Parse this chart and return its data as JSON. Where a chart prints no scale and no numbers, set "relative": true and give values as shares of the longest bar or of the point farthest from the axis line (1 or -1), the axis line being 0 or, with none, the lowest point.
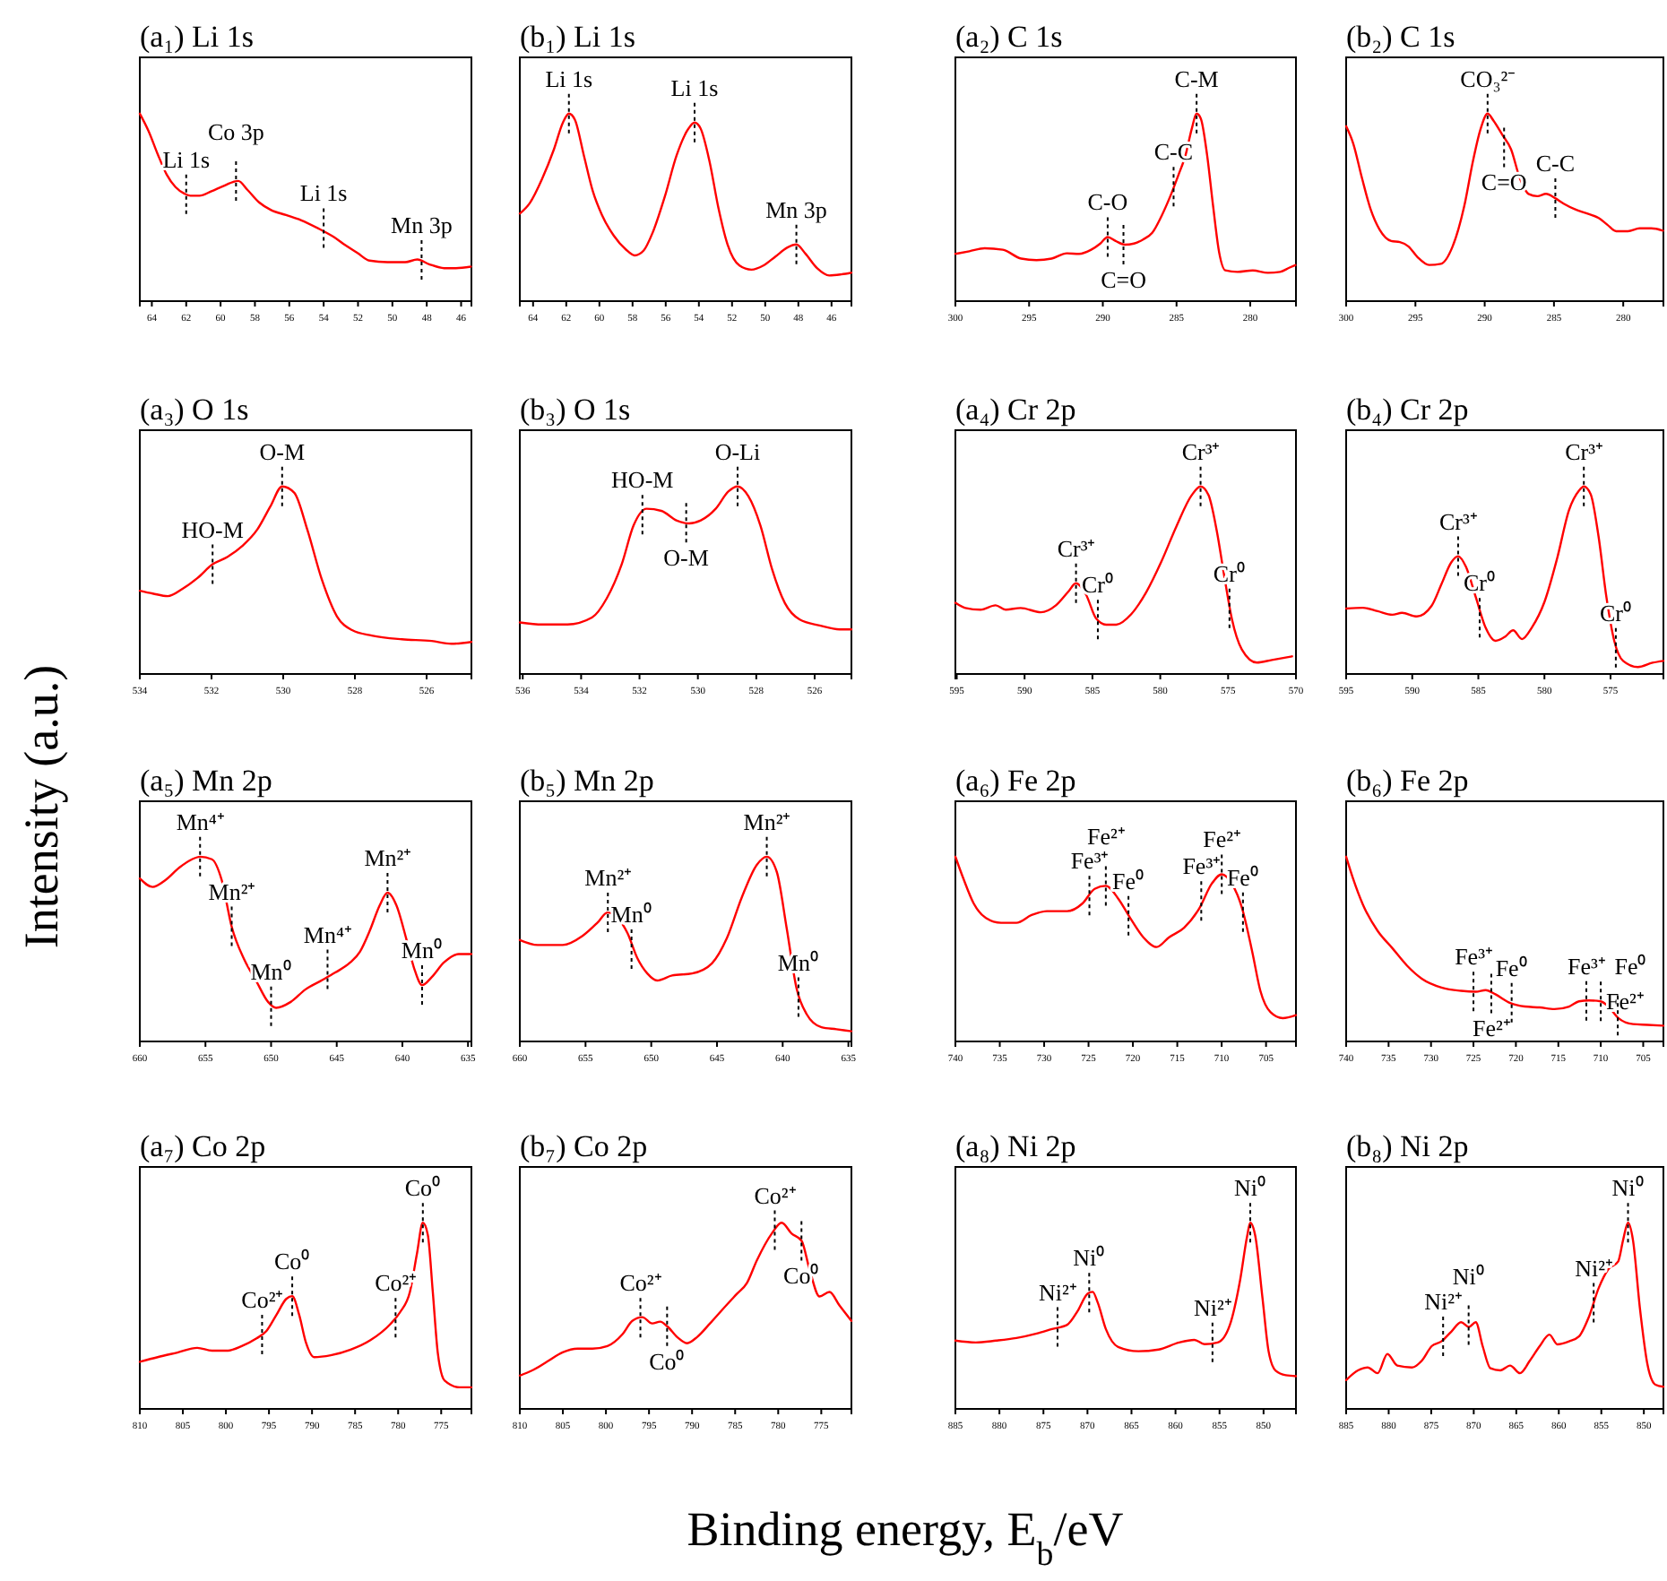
{
  "chart_data": [
    {
      "type": "line",
      "title": "(a₁) Li 1s",
      "relative": true,
      "tick_labels": "x",
      "color": "#ff0000",
      "xlim": [
        64.7,
        45.4
      ],
      "xticks": [
        64,
        62,
        60,
        58,
        56,
        54,
        52,
        50,
        48,
        46
      ],
      "x": [
        64.7,
        64.18,
        63.66,
        63.14,
        62.62,
        62.1,
        61.75,
        61.23,
        60.53,
        59.84,
        58.97,
        58.45,
        57.76,
        57.06,
        56.19,
        55.33,
        54.28,
        53.42,
        52.72,
        52.03,
        51.33,
        50.29,
        49.25,
        48.55,
        47.86,
        46.99,
        46.3,
        45.43
      ],
      "values": [
        1.0,
        0.905,
        0.784,
        0.676,
        0.608,
        0.573,
        0.562,
        0.562,
        0.586,
        0.614,
        0.641,
        0.595,
        0.527,
        0.486,
        0.459,
        0.432,
        0.386,
        0.343,
        0.297,
        0.257,
        0.216,
        0.208,
        0.208,
        0.222,
        0.197,
        0.176,
        0.176,
        0.184
      ],
      "annotations": [
        {
          "text": "Li 1s",
          "x": 62,
          "y": 0.57
        },
        {
          "text": "Co 3p",
          "x": 59.1,
          "y": 0.64
        },
        {
          "text": "Li 1s",
          "x": 54,
          "y": 0.39
        },
        {
          "text": "Mn 3p",
          "x": 48.3,
          "y": 0.22
        }
      ]
    },
    {
      "type": "line",
      "title": "(b₁) Li 1s",
      "relative": true,
      "tick_labels": "x",
      "color": "#ff0000",
      "xlim": [
        64.8,
        44.8
      ],
      "xticks": [
        64,
        62,
        60,
        58,
        56,
        54,
        52,
        50,
        48,
        46
      ],
      "x": [
        64.8,
        64.19,
        63.46,
        62.74,
        62.2,
        61.84,
        61.48,
        60.94,
        60.4,
        59.85,
        59.13,
        58.41,
        57.87,
        57.33,
        56.79,
        56.06,
        55.34,
        54.62,
        54.26,
        53.9,
        53.36,
        52.81,
        52.27,
        51.55,
        50.83,
        50.11,
        49.38,
        48.66,
        48.12,
        47.58,
        46.86,
        46.14,
        45.41,
        44.8
      ],
      "values": [
        0.467,
        0.524,
        0.651,
        0.81,
        0.952,
        1.0,
        0.968,
        0.778,
        0.587,
        0.46,
        0.349,
        0.276,
        0.244,
        0.27,
        0.365,
        0.556,
        0.778,
        0.921,
        0.952,
        0.921,
        0.746,
        0.492,
        0.302,
        0.19,
        0.168,
        0.19,
        0.238,
        0.286,
        0.302,
        0.254,
        0.175,
        0.137,
        0.143,
        0.152
      ],
      "annotations": [
        {
          "text": "Li 1s",
          "x": 61.84,
          "y": 1.0
        },
        {
          "text": "Li 1s",
          "x": 54.26,
          "y": 0.952
        },
        {
          "text": "Mn 3p",
          "x": 48.12,
          "y": 0.302
        }
      ]
    },
    {
      "type": "line",
      "title": "(a₂) C 1s",
      "relative": true,
      "tick_labels": "x",
      "color": "#ff0000",
      "xlim": [
        300,
        276.9
      ],
      "xticks": [
        300,
        295,
        290,
        285,
        280
      ],
      "x": [
        300,
        299.05,
        298.02,
        296.78,
        295.54,
        294.5,
        293.47,
        292.44,
        291.61,
        290.79,
        290.17,
        289.67,
        289.13,
        288.51,
        287.89,
        287.27,
        286.65,
        286.03,
        285.41,
        284.88,
        284.38,
        283.97,
        283.64,
        283.35,
        282.93,
        282.52,
        282.11,
        281.69,
        280.87,
        279.83,
        278.8,
        277.98,
        277.36,
        276.94
      ],
      "values": [
        0.252,
        0.266,
        0.282,
        0.274,
        0.227,
        0.219,
        0.227,
        0.255,
        0.252,
        0.274,
        0.307,
        0.342,
        0.321,
        0.301,
        0.307,
        0.329,
        0.364,
        0.452,
        0.562,
        0.671,
        0.781,
        0.918,
        1.0,
        0.973,
        0.781,
        0.507,
        0.26,
        0.164,
        0.156,
        0.164,
        0.151,
        0.156,
        0.178,
        0.192
      ],
      "annotations": [
        {
          "text": "C-O",
          "x": 289.67,
          "y": 0.342
        },
        {
          "text": "C=O",
          "x": 288.6,
          "y": 0.301
        },
        {
          "text": "C-C",
          "x": 285.2,
          "y": 0.61
        },
        {
          "text": "C-M",
          "x": 283.64,
          "y": 1.0
        }
      ]
    },
    {
      "type": "line",
      "title": "(b₂) C 1s",
      "relative": true,
      "tick_labels": "x",
      "color": "#ff0000",
      "xlim": [
        300,
        277.1
      ],
      "xticks": [
        300,
        295,
        290,
        285,
        280
      ],
      "x": [
        300,
        299.49,
        298.86,
        298.23,
        297.59,
        296.75,
        296.12,
        295.49,
        294.85,
        294.01,
        293.16,
        292.32,
        291.48,
        290.84,
        290.3,
        289.79,
        289.37,
        288.73,
        288.1,
        287.47,
        286.84,
        286.2,
        285.57,
        284.94,
        284.3,
        283.46,
        282.62,
        281.77,
        281.14,
        280.51,
        279.66,
        278.82,
        277.97,
        277.13
      ],
      "values": [
        0.933,
        0.841,
        0.657,
        0.489,
        0.382,
        0.321,
        0.315,
        0.291,
        0.235,
        0.193,
        0.199,
        0.291,
        0.505,
        0.749,
        0.917,
        1.0,
        0.963,
        0.887,
        0.81,
        0.657,
        0.572,
        0.56,
        0.572,
        0.55,
        0.52,
        0.489,
        0.468,
        0.443,
        0.407,
        0.373,
        0.373,
        0.388,
        0.388,
        0.376
      ],
      "annotations": [
        {
          "text": "CO₃²⁻",
          "x": 289.79,
          "y": 1.0
        },
        {
          "text": "C=O",
          "x": 288.6,
          "y": 0.82
        },
        {
          "text": "C-C",
          "x": 284.9,
          "y": 0.55
        }
      ]
    },
    {
      "type": "line",
      "title": "(a₃) O 1s",
      "relative": true,
      "tick_labels": "x",
      "color": "#ff0000",
      "xlim": [
        534,
        524.75
      ],
      "xticks": [
        534,
        532,
        530,
        528,
        526
      ],
      "x": [
        534,
        533.64,
        533.22,
        532.81,
        532.39,
        531.97,
        531.56,
        531.14,
        530.72,
        530.36,
        530.03,
        529.69,
        529.33,
        528.92,
        528.5,
        528.08,
        527.53,
        526.69,
        525.86,
        525.31,
        524.75
      ],
      "values": [
        0.444,
        0.429,
        0.415,
        0.454,
        0.512,
        0.585,
        0.624,
        0.683,
        0.771,
        0.893,
        1.0,
        0.966,
        0.771,
        0.502,
        0.307,
        0.234,
        0.205,
        0.185,
        0.176,
        0.161,
        0.171
      ],
      "annotations": [
        {
          "text": "HO-M",
          "x": 531.97,
          "y": 0.585
        },
        {
          "text": "O-M",
          "x": 530.03,
          "y": 1.0
        }
      ]
    },
    {
      "type": "line",
      "title": "(b₃) O 1s",
      "relative": true,
      "tick_labels": "x",
      "color": "#ff0000",
      "xlim": [
        536.1,
        524.74
      ],
      "xticks": [
        536,
        534,
        532,
        530,
        528,
        526
      ],
      "x": [
        536.1,
        535.32,
        534.47,
        533.63,
        533.12,
        532.61,
        532.2,
        531.76,
        531.25,
        530.74,
        530.3,
        529.9,
        529.39,
        528.95,
        528.64,
        528.27,
        527.86,
        527.46,
        527.02,
        526.51,
        525.83,
        525.15,
        524.74
      ],
      "values": [
        0.275,
        0.264,
        0.264,
        0.301,
        0.404,
        0.585,
        0.793,
        0.881,
        0.87,
        0.819,
        0.803,
        0.819,
        0.881,
        0.974,
        1.0,
        0.948,
        0.793,
        0.56,
        0.378,
        0.29,
        0.259,
        0.238,
        0.238
      ],
      "annotations": [
        {
          "text": "HO-M",
          "x": 531.9,
          "y": 0.85
        },
        {
          "text": "O-M",
          "x": 530.4,
          "y": 0.806
        },
        {
          "text": "O-Li",
          "x": 528.64,
          "y": 1.0
        }
      ]
    },
    {
      "type": "line",
      "title": "(a₄) Cr 2p",
      "relative": true,
      "tick_labels": "x",
      "color": "#ff0000",
      "xlim": [
        595.1,
        570
      ],
      "xticks": [
        595,
        590,
        585,
        580,
        575,
        570
      ],
      "x": [
        595.1,
        594.36,
        593.25,
        592.14,
        591.4,
        590.29,
        588.8,
        587.69,
        586.8,
        586.21,
        585.47,
        584.73,
        583.99,
        583.25,
        582.14,
        581.03,
        579.91,
        578.8,
        577.69,
        577.03,
        576.44,
        575.84,
        575.25,
        574.73,
        573.99,
        572.88,
        571.77,
        570.29
      ],
      "values": [
        0.38,
        0.352,
        0.343,
        0.366,
        0.343,
        0.352,
        0.329,
        0.366,
        0.437,
        0.484,
        0.423,
        0.296,
        0.263,
        0.263,
        0.319,
        0.437,
        0.601,
        0.789,
        0.953,
        1.0,
        0.953,
        0.765,
        0.507,
        0.296,
        0.131,
        0.061,
        0.075,
        0.094
      ],
      "annotations": [
        {
          "text": "Cr³⁺",
          "x": 586.21,
          "y": 0.484
        },
        {
          "text": "Cr⁰",
          "x": 584.6,
          "y": 0.29
        },
        {
          "text": "Cr³⁺",
          "x": 577.03,
          "y": 1.0
        },
        {
          "text": "Cr⁰",
          "x": 574.9,
          "y": 0.35
        }
      ]
    },
    {
      "type": "line",
      "title": "(b₄) Cr 2p",
      "relative": true,
      "tick_labels": "x",
      "color": "#ff0000",
      "xlim": [
        595,
        571
      ],
      "xticks": [
        595,
        590,
        585,
        580,
        575
      ],
      "x": [
        595,
        593.74,
        592.62,
        591.51,
        590.77,
        589.65,
        588.54,
        587.79,
        587.05,
        586.53,
        585.94,
        585.19,
        584.45,
        583.71,
        582.96,
        582.37,
        581.7,
        580.96,
        579.99,
        579.03,
        578.14,
        577.39,
        577.02,
        576.5,
        575.91,
        575.31,
        574.72,
        574.05,
        572.93,
        571.82,
        571.0
      ],
      "values": [
        0.349,
        0.353,
        0.335,
        0.316,
        0.326,
        0.307,
        0.363,
        0.479,
        0.595,
        0.628,
        0.572,
        0.409,
        0.247,
        0.177,
        0.2,
        0.233,
        0.186,
        0.247,
        0.386,
        0.619,
        0.874,
        0.977,
        1.0,
        0.958,
        0.735,
        0.409,
        0.177,
        0.07,
        0.037,
        0.06,
        0.07
      ],
      "annotations": [
        {
          "text": "Cr³⁺",
          "x": 586.53,
          "y": 0.628
        },
        {
          "text": "Cr⁰",
          "x": 584.9,
          "y": 0.3
        },
        {
          "text": "Cr³⁺",
          "x": 577.02,
          "y": 1.0
        },
        {
          "text": "Cr⁰",
          "x": 574.6,
          "y": 0.14
        }
      ]
    },
    {
      "type": "line",
      "title": "(a₅) Mn 2p",
      "ylabel": "Intensity (a.u.)",
      "relative": true,
      "tick_labels": "x",
      "color": "#ff0000",
      "xlim": [
        660,
        634.74
      ],
      "xticks": [
        660,
        655,
        650,
        645,
        640,
        635
      ],
      "x": [
        660,
        659.02,
        658.05,
        656.99,
        656.02,
        655.41,
        654.51,
        653.76,
        653.01,
        652.03,
        651.13,
        650.23,
        649.62,
        648.5,
        647.37,
        646.24,
        645.11,
        643.98,
        643.23,
        642.48,
        641.73,
        641.13,
        640.45,
        639.7,
        639.1,
        638.5,
        637.74,
        636.84,
        635.71,
        634.74
      ],
      "values": [
        0.882,
        0.836,
        0.873,
        0.941,
        0.986,
        1.0,
        0.986,
        0.873,
        0.623,
        0.441,
        0.327,
        0.214,
        0.182,
        0.214,
        0.282,
        0.327,
        0.373,
        0.427,
        0.486,
        0.6,
        0.736,
        0.805,
        0.736,
        0.555,
        0.395,
        0.305,
        0.35,
        0.427,
        0.473,
        0.473
      ],
      "annotations": [
        {
          "text": "Mn⁴⁺",
          "x": 655.41,
          "y": 1.0
        },
        {
          "text": "Mn²⁺",
          "x": 653.0,
          "y": 0.623
        },
        {
          "text": "Mn⁰",
          "x": 650.0,
          "y": 0.19
        },
        {
          "text": "Mn⁴⁺",
          "x": 645.7,
          "y": 0.39
        },
        {
          "text": "Mn²⁺",
          "x": 641.13,
          "y": 0.805
        },
        {
          "text": "Mn⁰",
          "x": 638.5,
          "y": 0.305
        }
      ]
    },
    {
      "type": "line",
      "title": "(b₅) Mn 2p",
      "relative": true,
      "tick_labels": "x",
      "color": "#ff0000",
      "xlim": [
        660,
        634.77
      ],
      "xticks": [
        660,
        655,
        650,
        645,
        640,
        635
      ],
      "x": [
        660,
        658.64,
        656.74,
        655.23,
        654.09,
        653.33,
        652.58,
        651.82,
        651.06,
        650.3,
        649.55,
        648.41,
        646.89,
        645.38,
        644.24,
        643.11,
        641.97,
        641.21,
        640.45,
        639.7,
        638.94,
        638.18,
        637.05,
        635.91,
        634.77
      ],
      "values": [
        0.549,
        0.522,
        0.522,
        0.571,
        0.643,
        0.698,
        0.67,
        0.588,
        0.451,
        0.368,
        0.33,
        0.357,
        0.368,
        0.423,
        0.56,
        0.78,
        0.956,
        1.0,
        0.918,
        0.615,
        0.286,
        0.148,
        0.077,
        0.066,
        0.055
      ],
      "annotations": [
        {
          "text": "Mn²⁺",
          "x": 653.3,
          "y": 0.698
        },
        {
          "text": "Mn⁰",
          "x": 651.5,
          "y": 0.5
        },
        {
          "text": "Mn²⁺",
          "x": 641.21,
          "y": 1.0
        },
        {
          "text": "Mn⁰",
          "x": 638.8,
          "y": 0.24
        }
      ]
    },
    {
      "type": "line",
      "title": "(a₆) Fe 2p",
      "relative": true,
      "tick_labels": "x",
      "color": "#ff0000",
      "xlim": [
        740,
        701.63
      ],
      "xticks": [
        740,
        735,
        730,
        725,
        720,
        715,
        710,
        705
      ],
      "x": [
        740,
        739.08,
        737.94,
        736.56,
        734.85,
        733.13,
        731.41,
        729.69,
        727.4,
        725.68,
        724.31,
        723.05,
        721.67,
        720.3,
        718.81,
        717.32,
        715.95,
        714.23,
        712.51,
        711.13,
        709.99,
        708.84,
        707.7,
        706.55,
        705.64,
        704.49,
        703.12,
        701.63
      ],
      "values": [
        1.0,
        0.879,
        0.747,
        0.668,
        0.642,
        0.642,
        0.684,
        0.705,
        0.705,
        0.747,
        0.826,
        0.842,
        0.774,
        0.668,
        0.563,
        0.511,
        0.563,
        0.616,
        0.721,
        0.853,
        0.905,
        0.853,
        0.721,
        0.484,
        0.274,
        0.158,
        0.126,
        0.142
      ],
      "annotations": [
        {
          "text": "Fe³⁺",
          "x": 724.9,
          "y": 0.79
        },
        {
          "text": "Fe²⁺",
          "x": 723.05,
          "y": 0.842
        },
        {
          "text": "Fe⁰",
          "x": 720.5,
          "y": 0.68
        },
        {
          "text": "Fe³⁺",
          "x": 712.3,
          "y": 0.76
        },
        {
          "text": "Fe²⁺",
          "x": 709.99,
          "y": 0.905
        },
        {
          "text": "Fe⁰",
          "x": 707.6,
          "y": 0.7
        }
      ]
    },
    {
      "type": "line",
      "title": "(b₆) Fe 2p",
      "relative": true,
      "tick_labels": "x",
      "color": "#ff0000",
      "xlim": [
        740,
        702.62
      ],
      "xticks": [
        740,
        735,
        730,
        725,
        720,
        715,
        710,
        705
      ],
      "x": [
        740,
        739.19,
        738.03,
        736.3,
        734.56,
        732.82,
        731.09,
        728.77,
        726.46,
        724.72,
        723.56,
        722.41,
        720.67,
        718.94,
        717.2,
        715.46,
        713.73,
        712.57,
        711.41,
        710.02,
        709.1,
        707.94,
        706.2,
        704.47,
        702.62
      ],
      "values": [
        1.0,
        0.882,
        0.741,
        0.599,
        0.505,
        0.41,
        0.34,
        0.292,
        0.274,
        0.269,
        0.278,
        0.255,
        0.208,
        0.189,
        0.184,
        0.175,
        0.189,
        0.217,
        0.222,
        0.217,
        0.189,
        0.127,
        0.094,
        0.09,
        0.085
      ],
      "annotations": [
        {
          "text": "Fe³⁺",
          "x": 725.0,
          "y": 0.27
        },
        {
          "text": "Fe²⁺",
          "x": 722.9,
          "y": 0.26
        },
        {
          "text": "Fe⁰",
          "x": 720.5,
          "y": 0.21
        },
        {
          "text": "Fe³⁺",
          "x": 711.7,
          "y": 0.22
        },
        {
          "text": "Fe²⁺",
          "x": 710.0,
          "y": 0.217
        },
        {
          "text": "Fe⁰",
          "x": 708.0,
          "y": 0.14
        }
      ]
    },
    {
      "type": "line",
      "title": "(a₇) Co 2p",
      "relative": true,
      "tick_labels": "x",
      "color": "#ff0000",
      "xlim": [
        810,
        771.49
      ],
      "xticks": [
        810,
        805,
        800,
        795,
        790,
        785,
        780,
        775
      ],
      "x": [
        810,
        807.93,
        805.63,
        803.33,
        801.61,
        799.89,
        798.16,
        796.44,
        795.29,
        794.14,
        792.99,
        792.3,
        791.49,
        790.69,
        789.77,
        787.82,
        785.52,
        783.22,
        780.92,
        779.77,
        778.62,
        777.82,
        777.13,
        776.55,
        775.98,
        775.4,
        774.6,
        772.87,
        771.49
      ],
      "values": [
        0.253,
        0.278,
        0.303,
        0.328,
        0.313,
        0.313,
        0.338,
        0.379,
        0.419,
        0.505,
        0.591,
        0.606,
        0.505,
        0.354,
        0.278,
        0.288,
        0.318,
        0.369,
        0.455,
        0.52,
        0.631,
        0.833,
        1.0,
        0.934,
        0.631,
        0.303,
        0.152,
        0.116,
        0.116
      ],
      "annotations": [
        {
          "text": "Co²⁺",
          "x": 795.8,
          "y": 0.4
        },
        {
          "text": "Co⁰",
          "x": 792.3,
          "y": 0.606
        },
        {
          "text": "Co²⁺",
          "x": 780.3,
          "y": 0.49
        },
        {
          "text": "Co⁰",
          "x": 777.13,
          "y": 1.0
        }
      ]
    },
    {
      "type": "line",
      "title": "(b₇) Co 2p",
      "xlabel": "Binding energy, E$_{b}$/eV",
      "relative": true,
      "tick_labels": "x",
      "color": "#ff0000",
      "xlim": [
        810,
        771.5
      ],
      "xticks": [
        810,
        805,
        800,
        795,
        790,
        785,
        780,
        775
      ],
      "x": [
        810,
        808.5,
        806.76,
        805.03,
        803.29,
        801.56,
        799.83,
        798.09,
        796.94,
        795.78,
        794.62,
        793.7,
        792.89,
        791.73,
        790.58,
        789.42,
        787.92,
        786.53,
        784.8,
        783.64,
        782.49,
        780.75,
        779.6,
        778.44,
        777.28,
        776.36,
        775.2,
        774.05,
        772.89,
        771.5
      ],
      "values": [
        0.179,
        0.208,
        0.256,
        0.304,
        0.324,
        0.324,
        0.338,
        0.401,
        0.473,
        0.493,
        0.459,
        0.469,
        0.444,
        0.386,
        0.353,
        0.386,
        0.459,
        0.531,
        0.618,
        0.676,
        0.797,
        0.942,
        1.0,
        0.942,
        0.903,
        0.749,
        0.604,
        0.628,
        0.556,
        0.473
      ],
      "annotations": [
        {
          "text": "Co²⁺",
          "x": 796.0,
          "y": 0.49
        },
        {
          "text": "Co⁰",
          "x": 792.9,
          "y": 0.444
        },
        {
          "text": "Co²⁺",
          "x": 780.4,
          "y": 0.96
        },
        {
          "text": "Co⁰",
          "x": 777.3,
          "y": 0.903
        }
      ]
    },
    {
      "type": "line",
      "title": "(a₈) Ni 2p",
      "relative": true,
      "tick_labels": "x",
      "color": "#ff0000",
      "xlim": [
        885,
        846.32
      ],
      "xticks": [
        885,
        880,
        875,
        870,
        865,
        860,
        855,
        850
      ],
      "x": [
        885,
        882.69,
        880.38,
        878.07,
        875.76,
        874.03,
        872.3,
        871.14,
        869.99,
        869.41,
        868.83,
        867.91,
        866.52,
        864.22,
        861.91,
        859.6,
        857.86,
        856.71,
        855.21,
        853.82,
        852.67,
        851.86,
        851.51,
        850.94,
        850.12,
        849.43,
        848.62,
        847.47,
        846.32
      ],
      "values": [
        0.367,
        0.357,
        0.367,
        0.381,
        0.405,
        0.429,
        0.452,
        0.524,
        0.619,
        0.629,
        0.571,
        0.429,
        0.333,
        0.31,
        0.319,
        0.357,
        0.371,
        0.348,
        0.357,
        0.452,
        0.69,
        0.929,
        1.0,
        0.929,
        0.595,
        0.31,
        0.205,
        0.181,
        0.176
      ],
      "annotations": [
        {
          "text": "Ni²⁺",
          "x": 873.4,
          "y": 0.44
        },
        {
          "text": "Ni⁰",
          "x": 869.8,
          "y": 0.625
        },
        {
          "text": "Ni²⁺",
          "x": 855.8,
          "y": 0.357
        },
        {
          "text": "Ni⁰",
          "x": 851.51,
          "y": 1.0
        }
      ]
    },
    {
      "type": "line",
      "title": "(b₈) Ni 2p",
      "relative": true,
      "tick_labels": "x",
      "color": "#ff0000",
      "xlim": [
        885,
        847.7
      ],
      "xticks": [
        885,
        880,
        875,
        870,
        865,
        860,
        855,
        850
      ],
      "x": [
        885,
        883.61,
        882.46,
        881.3,
        880.15,
        878.99,
        877.26,
        876.11,
        874.95,
        873.8,
        872.64,
        871.49,
        870.57,
        869.76,
        868.95,
        868.03,
        866.87,
        865.72,
        864.56,
        863.41,
        862.25,
        861.1,
        860.17,
        858.79,
        857.63,
        856.48,
        855.32,
        854.17,
        853.01,
        852.44,
        851.86,
        851.28,
        850.47,
        849.55,
        848.63,
        847.7
      ],
      "values": [
        0.155,
        0.207,
        0.223,
        0.192,
        0.295,
        0.233,
        0.223,
        0.259,
        0.337,
        0.363,
        0.415,
        0.466,
        0.44,
        0.466,
        0.337,
        0.218,
        0.207,
        0.233,
        0.192,
        0.259,
        0.337,
        0.399,
        0.347,
        0.363,
        0.389,
        0.492,
        0.648,
        0.751,
        0.793,
        0.907,
        1.0,
        0.907,
        0.544,
        0.233,
        0.13,
        0.119
      ],
      "annotations": [
        {
          "text": "Ni²⁺",
          "x": 873.6,
          "y": 0.39
        },
        {
          "text": "Ni⁰",
          "x": 870.6,
          "y": 0.45
        },
        {
          "text": "Ni²⁺",
          "x": 855.9,
          "y": 0.57
        },
        {
          "text": "Ni⁰",
          "x": 851.86,
          "y": 1.0
        }
      ]
    }
  ]
}
